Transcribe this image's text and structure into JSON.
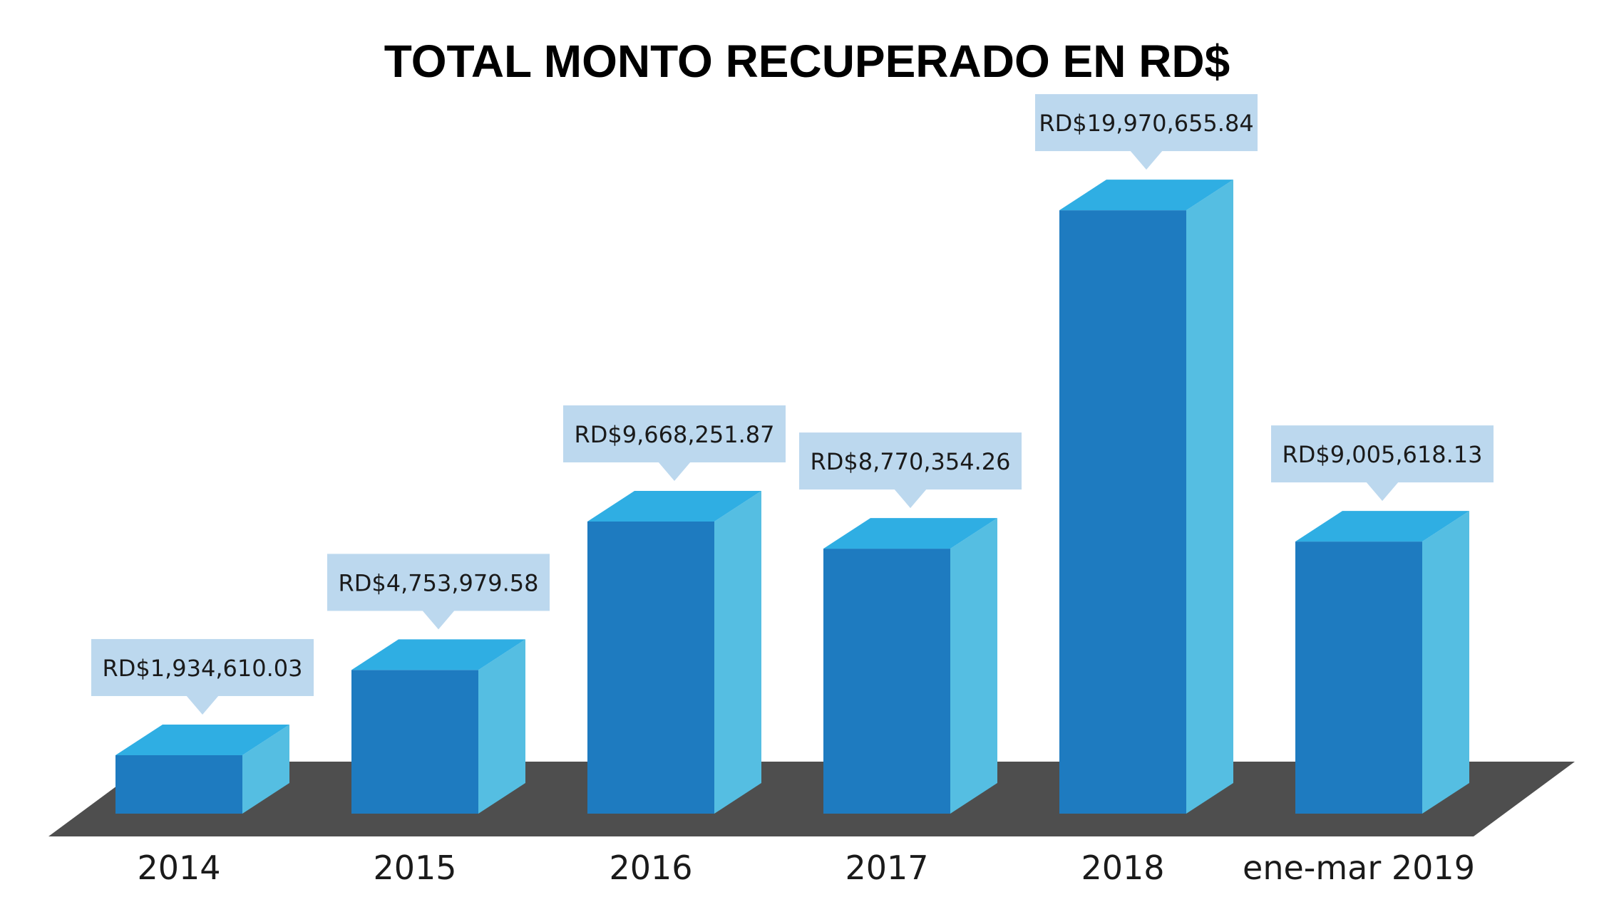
{
  "chart_data": {
    "type": "bar",
    "title": "TOTAL MONTO RECUPERADO EN RD$",
    "xlabel": "",
    "ylabel": "",
    "categories": [
      "2014",
      "2015",
      "2016",
      "2017",
      "2018",
      "ene-mar 2019"
    ],
    "values": [
      1934610.03,
      4753979.58,
      9668251.87,
      8770354.26,
      19970655.84,
      9005618.13
    ],
    "data_labels": [
      "RD$1,934,610.03",
      "RD$4,753,979.58",
      "RD$9,668,251.87",
      "RD$8,770,354.26",
      "RD$19,970,655.84",
      "RD$9,005,618.13"
    ],
    "ylim": [
      0,
      20000000
    ],
    "grid": false,
    "legend": "none",
    "style": "3d-column"
  },
  "colors": {
    "bar_front": "#1E7BC0",
    "bar_top": "#2FAEE3",
    "bar_side": "#55BEE2",
    "floor": "#4E4E4E",
    "label_box": "#BCD8EE",
    "text": "#1a1a1a"
  }
}
